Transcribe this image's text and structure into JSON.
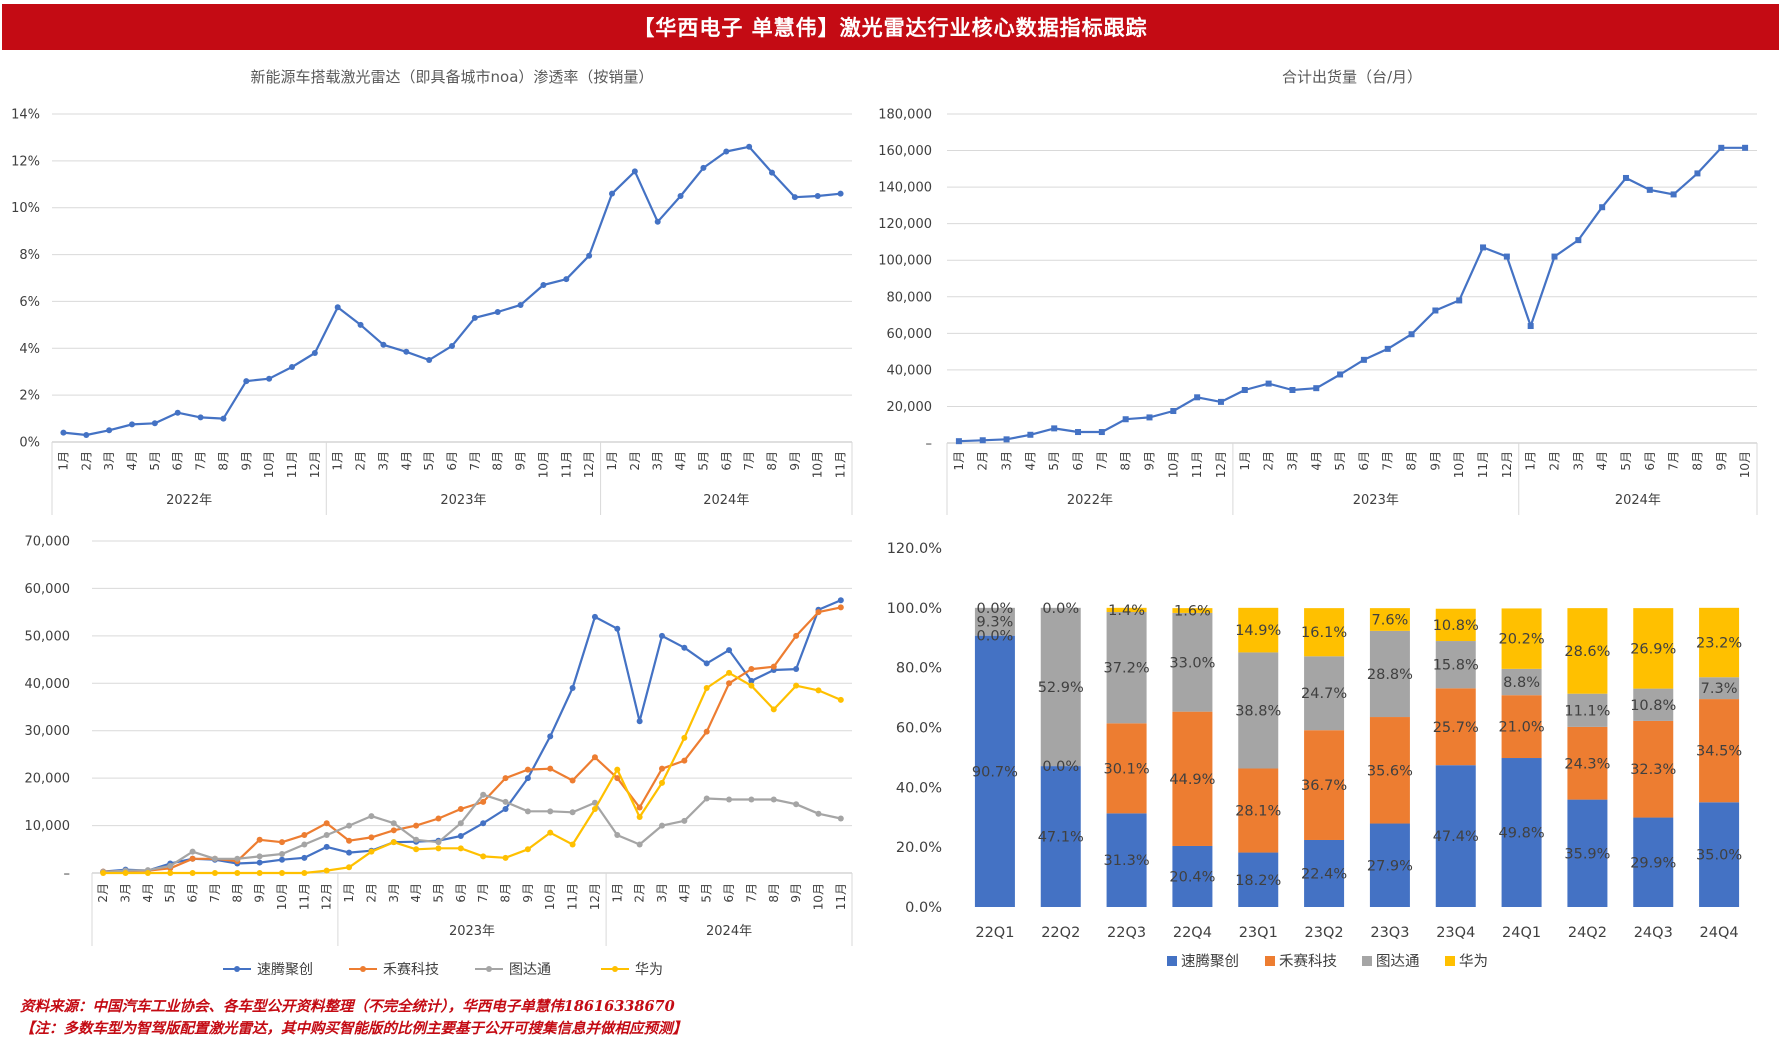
{
  "header": {
    "title": "【华西电子 单慧伟】激光雷达行业核心数据指标跟踪"
  },
  "footer": {
    "source": "资料来源：中国汽车工业协会、各车型公开资料整理（不完全统计），华西电子单慧伟18616338670",
    "note": "【注：多数车型为智驾版配置激光雷达，其中购买智能版的比例主要基于公开可搜集信息并做相应预测】"
  },
  "colors": {
    "blue": "#4472c4",
    "orange": "#ed7d31",
    "gray": "#a5a5a5",
    "yellow": "#ffc000",
    "banner": "#c40b14"
  },
  "chart_data": [
    {
      "type": "line",
      "title": "新能源车搭载激光雷达（即具备城市noa）渗透率（按销量）",
      "y_ticks": [
        "0%",
        "2%",
        "4%",
        "6%",
        "8%",
        "10%",
        "12%",
        "14%"
      ],
      "ylim": [
        0,
        14
      ],
      "x_labels": [
        "1月",
        "2月",
        "3月",
        "4月",
        "5月",
        "6月",
        "7月",
        "8月",
        "9月",
        "10月",
        "11月",
        "12月",
        "1月",
        "2月",
        "3月",
        "4月",
        "5月",
        "6月",
        "7月",
        "8月",
        "9月",
        "10月",
        "11月",
        "12月",
        "1月",
        "2月",
        "3月",
        "4月",
        "5月",
        "6月",
        "7月",
        "8月",
        "9月",
        "10月",
        "11月"
      ],
      "groups": [
        {
          "label": "2022年",
          "count": 12
        },
        {
          "label": "2023年",
          "count": 12
        },
        {
          "label": "2024年",
          "count": 11
        }
      ],
      "series": [
        {
          "values": [
            0.4,
            0.3,
            0.5,
            0.75,
            0.8,
            1.25,
            1.05,
            1.0,
            2.6,
            2.7,
            3.2,
            3.8,
            5.75,
            5.0,
            4.15,
            3.85,
            3.5,
            4.1,
            5.3,
            5.55,
            5.85,
            6.7,
            6.95,
            7.95,
            10.6,
            11.55,
            9.4,
            10.5,
            11.7,
            12.4,
            12.6,
            11.5,
            10.45,
            10.5,
            10.6
          ]
        }
      ]
    },
    {
      "type": "line",
      "title": "合计出货量（台/月）",
      "y_ticks": [
        "–",
        "20,000",
        "40,000",
        "60,000",
        "80,000",
        "100,000",
        "120,000",
        "140,000",
        "160,000",
        "180,000"
      ],
      "ylim": [
        0,
        180000
      ],
      "x_labels": [
        "1月",
        "2月",
        "3月",
        "4月",
        "5月",
        "6月",
        "7月",
        "8月",
        "9月",
        "10月",
        "11月",
        "12月",
        "1月",
        "2月",
        "3月",
        "4月",
        "5月",
        "6月",
        "7月",
        "8月",
        "9月",
        "10月",
        "11月",
        "12月",
        "1月",
        "2月",
        "3月",
        "4月",
        "5月",
        "6月",
        "7月",
        "8月",
        "9月",
        "10月"
      ],
      "groups": [
        {
          "label": "2022年",
          "count": 12
        },
        {
          "label": "2023年",
          "count": 12
        },
        {
          "label": "2024年",
          "count": 10
        }
      ],
      "series": [
        {
          "values": [
            1000,
            1500,
            2000,
            4500,
            8000,
            6000,
            6000,
            13000,
            14000,
            17500,
            25000,
            22500,
            29000,
            32500,
            29000,
            30000,
            37500,
            45500,
            51500,
            59500,
            72500,
            78000,
            107000,
            102000,
            64000,
            102000,
            111000,
            129000,
            145000,
            138500,
            136000,
            147500,
            161500,
            161500
          ]
        }
      ]
    },
    {
      "type": "line",
      "title": "",
      "y_ticks": [
        "–",
        "10,000",
        "20,000",
        "30,000",
        "40,000",
        "50,000",
        "60,000",
        "70,000"
      ],
      "ylim": [
        0,
        70000
      ],
      "x_labels": [
        "2月",
        "3月",
        "4月",
        "5月",
        "6月",
        "7月",
        "8月",
        "9月",
        "10月",
        "11月",
        "12月",
        "1月",
        "2月",
        "3月",
        "4月",
        "5月",
        "6月",
        "7月",
        "8月",
        "9月",
        "10月",
        "11月",
        "12月",
        "1月",
        "2月",
        "3月",
        "4月",
        "5月",
        "6月",
        "7月",
        "8月",
        "9月",
        "10月",
        "11月"
      ],
      "groups": [
        {
          "label": "",
          "count": 11
        },
        {
          "label": "2023年",
          "count": 12
        },
        {
          "label": "2024年",
          "count": 11
        }
      ],
      "legend": [
        "速腾聚创",
        "禾赛科技",
        "图达通",
        "华为"
      ],
      "series": [
        {
          "name": "速腾聚创",
          "color": "#4472c4",
          "values": [
            300,
            700,
            500,
            2000,
            3000,
            2800,
            2000,
            2200,
            2800,
            3200,
            5500,
            4300,
            4700,
            6500,
            6600,
            6800,
            7800,
            10500,
            13500,
            20000,
            28800,
            39000,
            54000,
            51500,
            32000,
            50000,
            47500,
            44200,
            47000,
            40500,
            42800,
            43000,
            55500,
            57500
          ]
        },
        {
          "name": "禾赛科技",
          "color": "#ed7d31",
          "values": [
            300,
            400,
            500,
            1000,
            3000,
            3000,
            2500,
            7000,
            6500,
            8000,
            10500,
            6800,
            7500,
            9000,
            10000,
            11500,
            13500,
            15000,
            20000,
            21800,
            22000,
            19500,
            24400,
            20000,
            13800,
            22000,
            23700,
            29800,
            40000,
            43000,
            43500,
            50000,
            55000,
            56000
          ]
        },
        {
          "name": "图达通",
          "color": "#a5a5a5",
          "values": [
            200,
            500,
            600,
            1500,
            4500,
            3000,
            3000,
            3500,
            4000,
            6000,
            8000,
            10000,
            12000,
            10500,
            7000,
            6500,
            10500,
            16500,
            15000,
            13000,
            13000,
            12800,
            14800,
            8000,
            6000,
            10000,
            11000,
            15700,
            15500,
            15500,
            15500,
            14500,
            12500,
            11500
          ]
        },
        {
          "name": "华为",
          "color": "#ffc000",
          "values": [
            0,
            0,
            0,
            0,
            0,
            0,
            0,
            0,
            0,
            0,
            500,
            1200,
            4500,
            6500,
            5000,
            5200,
            5200,
            3500,
            3200,
            5000,
            8500,
            6000,
            13500,
            21800,
            11800,
            19000,
            28500,
            39000,
            42200,
            39500,
            34500,
            39500,
            38500,
            36500
          ]
        }
      ]
    },
    {
      "type": "bar",
      "stacked": true,
      "title": "",
      "y_ticks": [
        "0.0%",
        "20.0%",
        "40.0%",
        "60.0%",
        "80.0%",
        "100.0%",
        "120.0%"
      ],
      "ylim": [
        0,
        120
      ],
      "categories": [
        "22Q1",
        "22Q2",
        "22Q3",
        "22Q4",
        "23Q1",
        "23Q2",
        "23Q3",
        "23Q4",
        "24Q1",
        "24Q2",
        "24Q3",
        "24Q4"
      ],
      "legend": [
        "速腾聚创",
        "禾赛科技",
        "图达通",
        "华为"
      ],
      "series": [
        {
          "name": "速腾聚创",
          "color": "#4472c4",
          "values": [
            90.7,
            47.1,
            31.3,
            20.4,
            18.2,
            22.4,
            27.9,
            47.4,
            49.8,
            35.9,
            29.9,
            35.0
          ],
          "labels": [
            "90.7%",
            "47.1%",
            "31.3%",
            "20.4%",
            "18.2%",
            "22.4%",
            "27.9%",
            "47.4%",
            "49.8%",
            "35.9%",
            "29.9%",
            "35.0%"
          ]
        },
        {
          "name": "禾赛科技",
          "color": "#ed7d31",
          "values": [
            0.0,
            0.0,
            30.1,
            44.9,
            28.1,
            36.7,
            35.6,
            25.7,
            21.0,
            24.3,
            32.3,
            34.5
          ],
          "labels": [
            "0.0%",
            "0.0%",
            "30.1%",
            "44.9%",
            "28.1%",
            "36.7%",
            "35.6%",
            "25.7%",
            "21.0%",
            "24.3%",
            "32.3%",
            "34.5%"
          ]
        },
        {
          "name": "图达通",
          "color": "#a5a5a5",
          "values": [
            9.3,
            52.9,
            37.2,
            33.0,
            38.8,
            24.7,
            28.8,
            15.8,
            8.8,
            11.1,
            10.8,
            7.3
          ],
          "labels": [
            "9.3%",
            "52.9%",
            "37.2%",
            "33.0%",
            "38.8%",
            "24.7%",
            "28.8%",
            "15.8%",
            "8.8%",
            "11.1%",
            "10.8%",
            "7.3%"
          ]
        },
        {
          "name": "华为",
          "color": "#ffc000",
          "values": [
            0.0,
            0.0,
            1.4,
            1.6,
            14.9,
            16.1,
            7.6,
            10.8,
            20.2,
            28.6,
            26.9,
            23.2
          ],
          "labels": [
            "0.0%",
            "0.0%",
            "1.4%",
            "1.6%",
            "14.9%",
            "16.1%",
            "7.6%",
            "10.8%",
            "20.2%",
            "28.6%",
            "26.9%",
            "23.2%"
          ]
        }
      ]
    }
  ]
}
